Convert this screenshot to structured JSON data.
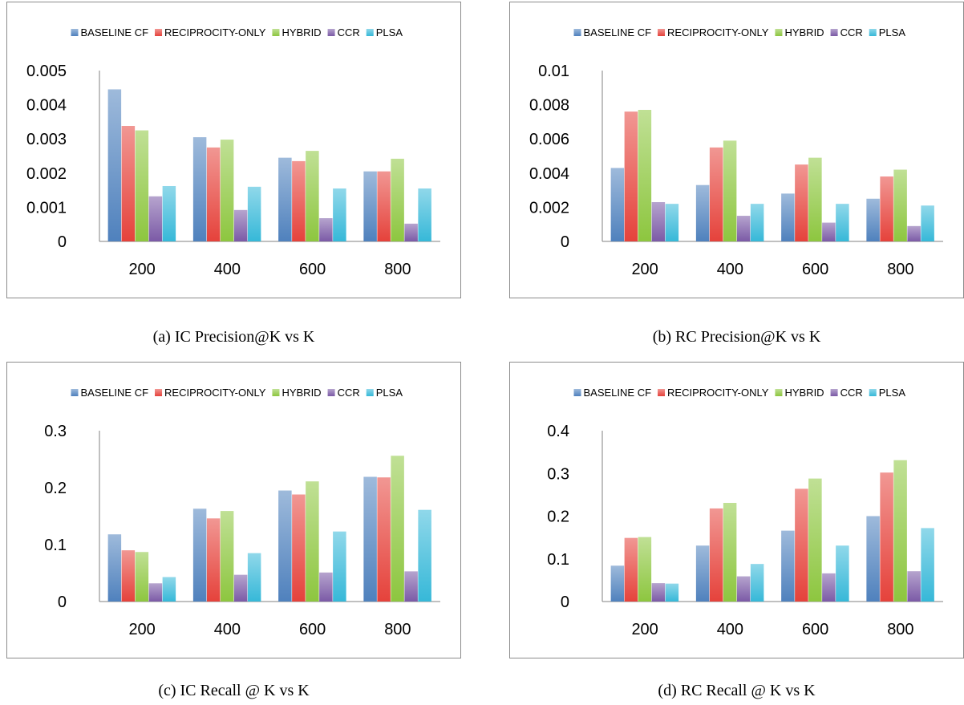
{
  "legend_labels": [
    "BASELINE CF",
    "RECIPROCITY-ONLY",
    "HYBRID",
    "CCR",
    "PLSA"
  ],
  "series_colors": [
    "#4f81bd",
    "#e5423b",
    "#8dc63f",
    "#7b5aa6",
    "#36b8d8"
  ],
  "captions": [
    "(a) IC Precision@K vs K",
    "(b) RC Precision@K vs K",
    "(c) IC Recall @ K vs K",
    "(d) RC Recall @ K vs K"
  ],
  "chart_data": [
    {
      "type": "bar",
      "title": "",
      "categories": [
        "200",
        "400",
        "600",
        "800"
      ],
      "yticks": [
        "0",
        "0.001",
        "0.002",
        "0.003",
        "0.004",
        "0.005"
      ],
      "ylim": [
        0,
        0.005
      ],
      "legend": "top",
      "series": [
        {
          "name": "BASELINE CF",
          "values": [
            0.00445,
            0.00305,
            0.00245,
            0.00205
          ]
        },
        {
          "name": "RECIPROCITY-ONLY",
          "values": [
            0.00338,
            0.00275,
            0.00235,
            0.00205
          ]
        },
        {
          "name": "HYBRID",
          "values": [
            0.00325,
            0.00298,
            0.00265,
            0.00242
          ]
        },
        {
          "name": "CCR",
          "values": [
            0.00132,
            0.00092,
            0.00068,
            0.00052
          ]
        },
        {
          "name": "PLSA",
          "values": [
            0.00162,
            0.0016,
            0.00155,
            0.00155
          ]
        }
      ]
    },
    {
      "type": "bar",
      "title": "",
      "categories": [
        "200",
        "400",
        "600",
        "800"
      ],
      "yticks": [
        "0",
        "0.002",
        "0.004",
        "0.006",
        "0.008",
        "0.01"
      ],
      "ylim": [
        0,
        0.01
      ],
      "legend": "top",
      "series": [
        {
          "name": "BASELINE CF",
          "values": [
            0.0043,
            0.0033,
            0.0028,
            0.0025
          ]
        },
        {
          "name": "RECIPROCITY-ONLY",
          "values": [
            0.0076,
            0.0055,
            0.0045,
            0.0038
          ]
        },
        {
          "name": "HYBRID",
          "values": [
            0.0077,
            0.0059,
            0.0049,
            0.0042
          ]
        },
        {
          "name": "CCR",
          "values": [
            0.0023,
            0.0015,
            0.0011,
            0.0009
          ]
        },
        {
          "name": "PLSA",
          "values": [
            0.0022,
            0.0022,
            0.0022,
            0.0021
          ]
        }
      ]
    },
    {
      "type": "bar",
      "title": "",
      "categories": [
        "200",
        "400",
        "600",
        "800"
      ],
      "yticks": [
        "0",
        "0.1",
        "0.2",
        "0.3"
      ],
      "ylim": [
        0,
        0.3
      ],
      "legend": "top",
      "series": [
        {
          "name": "BASELINE CF",
          "values": [
            0.118,
            0.163,
            0.195,
            0.219
          ]
        },
        {
          "name": "RECIPROCITY-ONLY",
          "values": [
            0.09,
            0.146,
            0.188,
            0.218
          ]
        },
        {
          "name": "HYBRID",
          "values": [
            0.087,
            0.159,
            0.211,
            0.256
          ]
        },
        {
          "name": "CCR",
          "values": [
            0.032,
            0.047,
            0.051,
            0.053
          ]
        },
        {
          "name": "PLSA",
          "values": [
            0.043,
            0.085,
            0.123,
            0.161
          ]
        }
      ]
    },
    {
      "type": "bar",
      "title": "",
      "categories": [
        "200",
        "400",
        "600",
        "800"
      ],
      "yticks": [
        "0",
        "0.1",
        "0.2",
        "0.3",
        "0.4"
      ],
      "ylim": [
        0,
        0.4
      ],
      "legend": "top",
      "series": [
        {
          "name": "BASELINE CF",
          "values": [
            0.084,
            0.131,
            0.166,
            0.2
          ]
        },
        {
          "name": "RECIPROCITY-ONLY",
          "values": [
            0.149,
            0.218,
            0.264,
            0.302
          ]
        },
        {
          "name": "HYBRID",
          "values": [
            0.151,
            0.231,
            0.288,
            0.331
          ]
        },
        {
          "name": "CCR",
          "values": [
            0.043,
            0.059,
            0.066,
            0.071
          ]
        },
        {
          "name": "PLSA",
          "values": [
            0.042,
            0.088,
            0.131,
            0.172
          ]
        }
      ]
    }
  ]
}
